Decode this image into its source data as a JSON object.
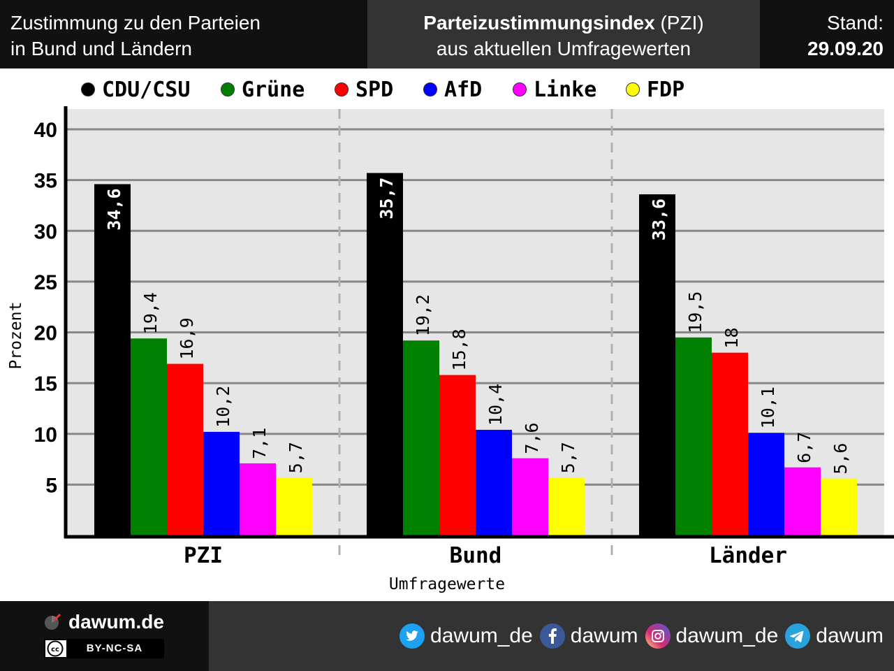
{
  "header": {
    "left_line1": "Zustimmung zu den Parteien",
    "left_line2": "in Bund und Ländern",
    "mid_title_bold": "Parteizustimmungsindex",
    "mid_title_rest": " (PZI)",
    "mid_subtitle": "aus aktuellen Umfragewerten",
    "stand_label": "Stand:",
    "stand_date": "29.09.20"
  },
  "colors": {
    "CDU/CSU": "#000000",
    "Grüne": "#008000",
    "SPD": "#ff0000",
    "AfD": "#0000ff",
    "Linke": "#ff00ff",
    "FDP": "#ffff00"
  },
  "chart_data": {
    "type": "bar",
    "categories": [
      "PZI",
      "Bund",
      "Länder"
    ],
    "series": [
      {
        "name": "CDU/CSU",
        "values": [
          34.6,
          35.7,
          33.6
        ],
        "labels": [
          "34,6",
          "35,7",
          "33,6"
        ]
      },
      {
        "name": "Grüne",
        "values": [
          19.4,
          19.2,
          19.5
        ],
        "labels": [
          "19,4",
          "19,2",
          "19,5"
        ]
      },
      {
        "name": "SPD",
        "values": [
          16.9,
          15.8,
          18
        ],
        "labels": [
          "16,9",
          "15,8",
          "18"
        ]
      },
      {
        "name": "AfD",
        "values": [
          10.2,
          10.4,
          10.1
        ],
        "labels": [
          "10,2",
          "10,4",
          "10,1"
        ]
      },
      {
        "name": "Linke",
        "values": [
          7.1,
          7.6,
          6.7
        ],
        "labels": [
          "7,1",
          "7,6",
          "6,7"
        ]
      },
      {
        "name": "FDP",
        "values": [
          5.7,
          5.7,
          5.6
        ],
        "labels": [
          "5,7",
          "5,7",
          "5,6"
        ]
      }
    ],
    "xlabel": "Umfragewerte",
    "ylabel": "Prozent",
    "yticks": [
      5,
      10,
      15,
      20,
      25,
      30,
      35,
      40
    ],
    "ylim": [
      0,
      42
    ],
    "grid": true,
    "legend": "top"
  },
  "footer": {
    "brand": "dawum.de",
    "license": "BY-NC-SA",
    "twitter": "dawum_de",
    "facebook": "dawum",
    "instagram": "dawum_de",
    "telegram": "dawum"
  }
}
